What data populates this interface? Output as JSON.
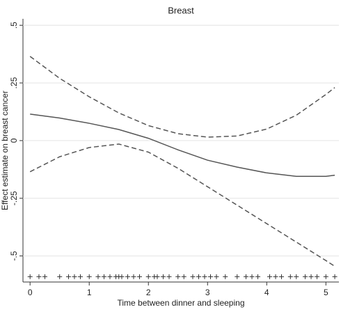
{
  "chart_data": {
    "type": "line",
    "title": "Breast",
    "x_label": "Time between dinner and sleeping",
    "y_label": "Effect estimate on breast cancer",
    "xlim": [
      -0.12,
      5.22
    ],
    "ylim": [
      -0.613,
      0.528
    ],
    "xticks": [
      0,
      1,
      2,
      3,
      4,
      5
    ],
    "yticks": [
      {
        "value": -0.5,
        "label": "-.5"
      },
      {
        "value": -0.25,
        "label": "-.25"
      },
      0,
      {
        "value": 0.25,
        "label": ".25"
      },
      {
        "value": 0.5,
        "label": ".5"
      }
    ],
    "grid": true,
    "x": [
      0,
      0.5,
      1,
      1.5,
      2,
      2.5,
      3,
      3.5,
      4,
      4.5,
      5,
      5.15
    ],
    "series": [
      {
        "color": "#555555",
        "style": "solid",
        "values": [
          0.115,
          0.098,
          0.075,
          0.048,
          0.01,
          -0.04,
          -0.085,
          -0.115,
          -0.14,
          -0.155,
          -0.155,
          -0.15
        ]
      },
      {
        "color": "#555555",
        "style": "dashed",
        "values": [
          0.365,
          0.27,
          0.19,
          0.12,
          0.065,
          0.03,
          0.015,
          0.02,
          0.05,
          0.11,
          0.2,
          0.23
        ]
      },
      {
        "color": "#555555",
        "style": "dashed",
        "values": [
          -0.135,
          -0.07,
          -0.03,
          -0.015,
          -0.05,
          -0.12,
          -0.2,
          -0.28,
          -0.36,
          -0.44,
          -0.52,
          -0.545
        ]
      }
    ],
    "rug": {
      "color": "#333333",
      "marker": "+",
      "x": [
        0,
        0.15,
        0.25,
        0.5,
        0.65,
        0.75,
        0.85,
        1.0,
        1.15,
        1.25,
        1.35,
        1.45,
        1.5,
        1.55,
        1.65,
        1.75,
        1.85,
        2.0,
        2.1,
        2.15,
        2.25,
        2.35,
        2.5,
        2.6,
        2.75,
        2.85,
        2.95,
        3.05,
        3.15,
        3.3,
        3.5,
        3.65,
        3.75,
        3.85,
        4.05,
        4.15,
        4.25,
        4.4,
        4.5,
        4.65,
        4.75,
        4.85,
        5.0,
        5.15
      ],
      "values": [
        -0.59,
        -0.59,
        -0.59,
        -0.59,
        -0.59,
        -0.59,
        -0.59,
        -0.59,
        -0.59,
        -0.59,
        -0.59,
        -0.59,
        -0.59,
        -0.59,
        -0.59,
        -0.59,
        -0.59,
        -0.59,
        -0.59,
        -0.59,
        -0.59,
        -0.59,
        -0.59,
        -0.59,
        -0.59,
        -0.59,
        -0.59,
        -0.59,
        -0.59,
        -0.59,
        -0.59,
        -0.59,
        -0.59,
        -0.59,
        -0.59,
        -0.59,
        -0.59,
        -0.59,
        -0.59,
        -0.59,
        -0.59,
        -0.59,
        -0.59,
        -0.59
      ]
    }
  }
}
